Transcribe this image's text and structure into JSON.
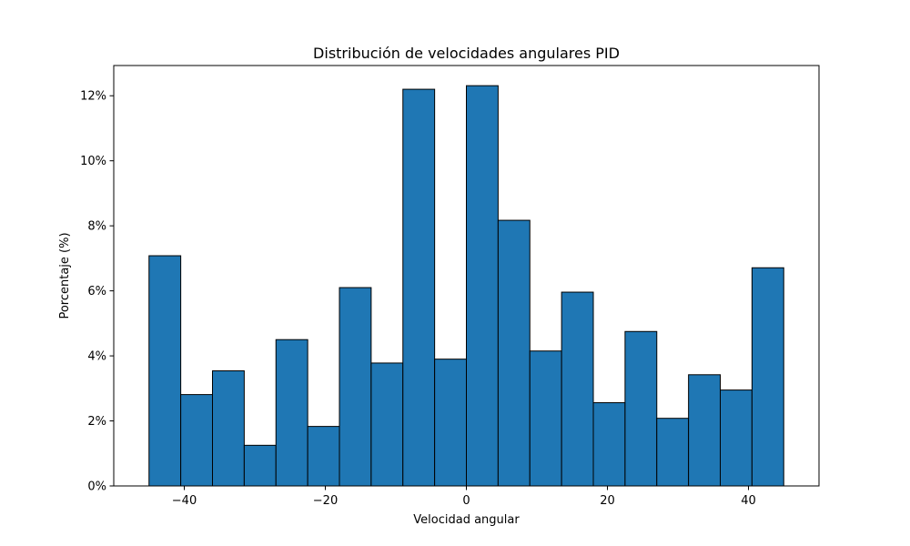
{
  "chart_data": {
    "type": "bar",
    "title": "Distribución de velocidades angulares PID",
    "xlabel": "Velocidad angular",
    "ylabel": "Porcentaje (%)",
    "xlim": [
      -50,
      50
    ],
    "ylim": [
      0,
      12.93
    ],
    "bar_color": "#1f77b4",
    "edge_color": "#000000",
    "bins": [
      {
        "start": -45.0,
        "end": -40.5,
        "value": 7.08
      },
      {
        "start": -40.5,
        "end": -36.0,
        "value": 2.81
      },
      {
        "start": -36.0,
        "end": -31.5,
        "value": 3.54
      },
      {
        "start": -31.5,
        "end": -27.0,
        "value": 1.25
      },
      {
        "start": -27.0,
        "end": -22.5,
        "value": 4.5
      },
      {
        "start": -22.5,
        "end": -18.0,
        "value": 1.83
      },
      {
        "start": -18.0,
        "end": -13.5,
        "value": 6.1
      },
      {
        "start": -13.5,
        "end": -9.0,
        "value": 3.78
      },
      {
        "start": -9.0,
        "end": -4.5,
        "value": 12.2
      },
      {
        "start": -4.5,
        "end": 0.0,
        "value": 3.9
      },
      {
        "start": 0.0,
        "end": 4.5,
        "value": 12.31
      },
      {
        "start": 4.5,
        "end": 9.0,
        "value": 8.17
      },
      {
        "start": 9.0,
        "end": 13.5,
        "value": 4.15
      },
      {
        "start": 13.5,
        "end": 18.0,
        "value": 5.96
      },
      {
        "start": 18.0,
        "end": 22.5,
        "value": 2.56
      },
      {
        "start": 22.5,
        "end": 27.0,
        "value": 4.75
      },
      {
        "start": 27.0,
        "end": 31.5,
        "value": 2.08
      },
      {
        "start": 31.5,
        "end": 36.0,
        "value": 3.42
      },
      {
        "start": 36.0,
        "end": 40.5,
        "value": 2.95
      },
      {
        "start": 40.5,
        "end": 45.0,
        "value": 6.71
      }
    ],
    "x_ticks": [
      {
        "value": -40,
        "label": "−40"
      },
      {
        "value": -20,
        "label": "−20"
      },
      {
        "value": 0,
        "label": "0"
      },
      {
        "value": 20,
        "label": "20"
      },
      {
        "value": 40,
        "label": "40"
      }
    ],
    "y_ticks": [
      {
        "value": 0,
        "label": "0%"
      },
      {
        "value": 2,
        "label": "2%"
      },
      {
        "value": 4,
        "label": "4%"
      },
      {
        "value": 6,
        "label": "6%"
      },
      {
        "value": 8,
        "label": "8%"
      },
      {
        "value": 10,
        "label": "10%"
      },
      {
        "value": 12,
        "label": "12%"
      }
    ]
  }
}
